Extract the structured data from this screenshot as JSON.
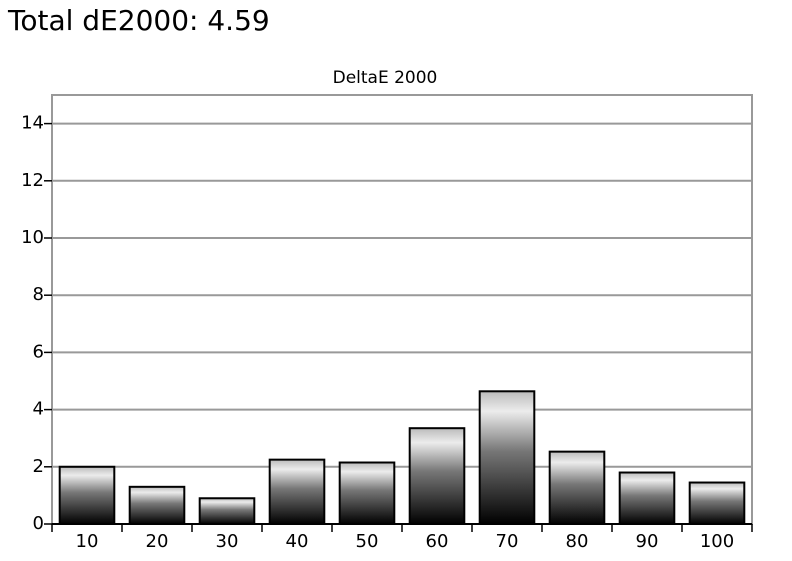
{
  "header": {
    "title": "Total dE2000: 4.59"
  },
  "chart_data": {
    "type": "bar",
    "title": "DeltaE 2000",
    "categories": [
      "10",
      "20",
      "30",
      "40",
      "50",
      "60",
      "70",
      "80",
      "90",
      "100"
    ],
    "values": [
      2.0,
      1.3,
      0.9,
      2.25,
      2.15,
      3.35,
      4.64,
      2.53,
      1.8,
      1.45
    ],
    "ylim": [
      0,
      15
    ],
    "yticks": [
      0,
      2,
      4,
      6,
      8,
      10,
      12,
      14
    ],
    "grid": true
  }
}
